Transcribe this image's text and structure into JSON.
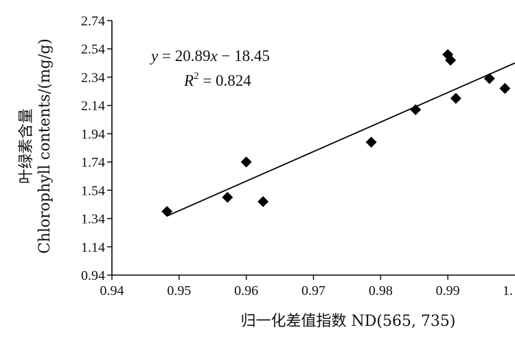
{
  "chart_data": {
    "type": "scatter",
    "xlabel": "归一化差值指数 ND(565, 735)",
    "ylabel_line1": "叶绿素含量",
    "ylabel_line2": "Chlorophyll contents/(mg/g)",
    "xlim": [
      0.94,
      1.0
    ],
    "ylim": [
      0.94,
      2.74
    ],
    "x_ticks": [
      "0.94",
      "0.95",
      "0.96",
      "0.97",
      "0.98",
      "0.99",
      "1."
    ],
    "y_ticks": [
      "0.94",
      "1.14",
      "1.34",
      "1.54",
      "1.74",
      "1.94",
      "2.14",
      "2.34",
      "2.54",
      "2.74"
    ],
    "x_tick_values": [
      0.94,
      0.95,
      0.96,
      0.97,
      0.98,
      0.99,
      1.0
    ],
    "y_tick_values": [
      0.94,
      1.14,
      1.34,
      1.54,
      1.74,
      1.94,
      2.14,
      2.34,
      2.54,
      2.74
    ],
    "points": [
      {
        "x": 0.9482,
        "y": 1.39
      },
      {
        "x": 0.9572,
        "y": 1.49
      },
      {
        "x": 0.96,
        "y": 1.74
      },
      {
        "x": 0.9625,
        "y": 1.46
      },
      {
        "x": 0.9786,
        "y": 1.88
      },
      {
        "x": 0.9852,
        "y": 2.11
      },
      {
        "x": 0.99,
        "y": 2.5
      },
      {
        "x": 0.9904,
        "y": 2.46
      },
      {
        "x": 0.9912,
        "y": 2.19
      },
      {
        "x": 0.9962,
        "y": 2.33
      },
      {
        "x": 0.9985,
        "y": 2.26
      }
    ],
    "fit": {
      "slope": 20.89,
      "intercept": -18.45,
      "x_start": 0.9482,
      "x_end": 1.0
    },
    "equation": {
      "y_var": "y",
      "eq_rest": " = 20.89",
      "x_var": "x",
      "eq_tail": " − 18.45",
      "r_var": "R",
      "r_sup": "2",
      "r_rest": " = 0.824"
    },
    "colors": {
      "marker": "#000000",
      "axis": "#000000",
      "line": "#000000"
    }
  }
}
